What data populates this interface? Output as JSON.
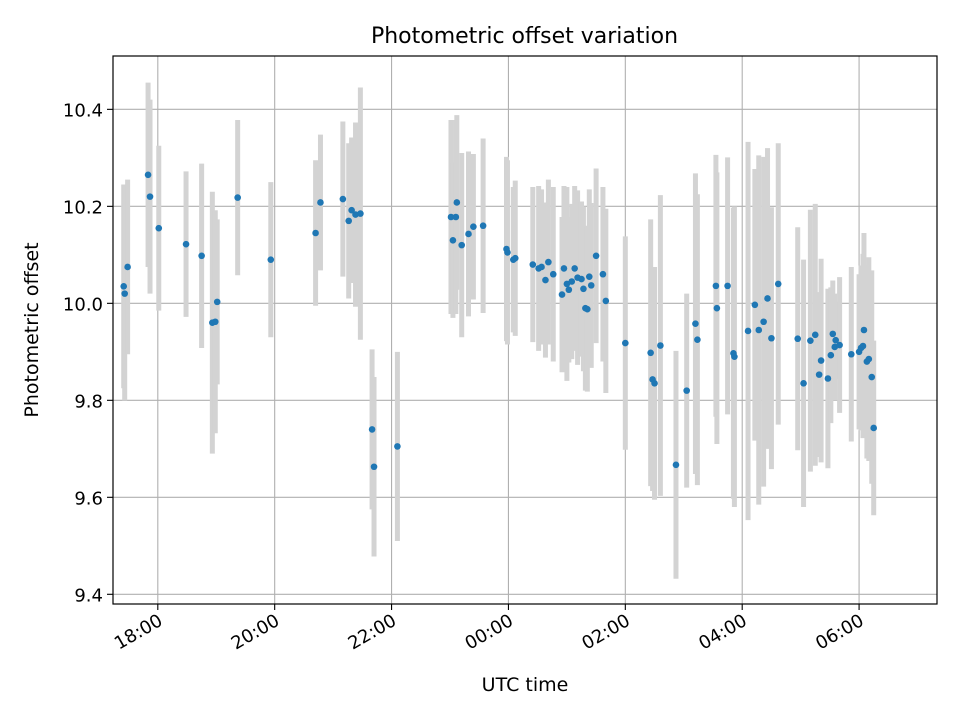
{
  "chart_data": {
    "type": "scatter",
    "title": "Photometric offset variation",
    "xlabel": "UTC time",
    "ylabel": "Photometric offset",
    "x_tick_labels": [
      "18:00",
      "20:00",
      "22:00",
      "00:00",
      "02:00",
      "04:00",
      "06:00"
    ],
    "y_ticks": [
      9.4,
      9.6,
      9.8,
      10.0,
      10.2,
      10.4
    ],
    "y_tick_labels": [
      "9.4",
      "9.6",
      "9.8",
      "10.0",
      "10.2",
      "10.4"
    ],
    "xlim": [
      "17:14",
      "07:20"
    ],
    "ylim": [
      9.38,
      10.51
    ],
    "grid": true,
    "error_bar_color": "#d3d3d3",
    "point_color": "#1f77b4",
    "points": [
      {
        "t": "17:25",
        "y": 10.035,
        "err": 0.21
      },
      {
        "t": "17:26",
        "y": 10.02,
        "err": 0.22
      },
      {
        "t": "17:29",
        "y": 10.075,
        "err": 0.18
      },
      {
        "t": "17:50",
        "y": 10.265,
        "err": 0.19
      },
      {
        "t": "17:52",
        "y": 10.22,
        "err": 0.2
      },
      {
        "t": "18:01",
        "y": 10.155,
        "err": 0.17
      },
      {
        "t": "18:29",
        "y": 10.122,
        "err": 0.15
      },
      {
        "t": "18:45",
        "y": 10.098,
        "err": 0.19
      },
      {
        "t": "18:56",
        "y": 9.96,
        "err": 0.27
      },
      {
        "t": "18:59",
        "y": 9.962,
        "err": 0.23
      },
      {
        "t": "19:01",
        "y": 10.003,
        "err": 0.17
      },
      {
        "t": "19:22",
        "y": 10.218,
        "err": 0.16
      },
      {
        "t": "19:56",
        "y": 10.09,
        "err": 0.16
      },
      {
        "t": "20:42",
        "y": 10.145,
        "err": 0.15
      },
      {
        "t": "20:47",
        "y": 10.208,
        "err": 0.14
      },
      {
        "t": "21:10",
        "y": 10.215,
        "err": 0.16
      },
      {
        "t": "21:16",
        "y": 10.17,
        "err": 0.16
      },
      {
        "t": "21:19",
        "y": 10.192,
        "err": 0.15
      },
      {
        "t": "21:23",
        "y": 10.183,
        "err": 0.19
      },
      {
        "t": "21:28",
        "y": 10.185,
        "err": 0.26
      },
      {
        "t": "21:40",
        "y": 9.74,
        "err": 0.165
      },
      {
        "t": "21:42",
        "y": 9.663,
        "err": 0.185
      },
      {
        "t": "22:06",
        "y": 9.705,
        "err": 0.195
      },
      {
        "t": "23:01",
        "y": 10.178,
        "err": 0.2
      },
      {
        "t": "23:03",
        "y": 10.13,
        "err": 0.16
      },
      {
        "t": "23:06",
        "y": 10.178,
        "err": 0.2
      },
      {
        "t": "23:07",
        "y": 10.208,
        "err": 0.18
      },
      {
        "t": "23:12",
        "y": 10.12,
        "err": 0.19
      },
      {
        "t": "23:19",
        "y": 10.143,
        "err": 0.17
      },
      {
        "t": "23:24",
        "y": 10.158,
        "err": 0.15
      },
      {
        "t": "23:34",
        "y": 10.16,
        "err": 0.18
      },
      {
        "t": "23:58",
        "y": 10.112,
        "err": 0.19
      },
      {
        "t": "23:59",
        "y": 10.105,
        "err": 0.19
      },
      {
        "t": "00:05",
        "y": 10.09,
        "err": 0.15
      },
      {
        "t": "00:07",
        "y": 10.093,
        "err": 0.16
      },
      {
        "t": "00:25",
        "y": 10.08,
        "err": 0.16
      },
      {
        "t": "00:31",
        "y": 10.072,
        "err": 0.17
      },
      {
        "t": "00:34",
        "y": 10.075,
        "err": 0.16
      },
      {
        "t": "00:38",
        "y": 10.048,
        "err": 0.16
      },
      {
        "t": "00:41",
        "y": 10.085,
        "err": 0.17
      },
      {
        "t": "00:46",
        "y": 10.06,
        "err": 0.18
      },
      {
        "t": "00:55",
        "y": 10.018,
        "err": 0.16
      },
      {
        "t": "00:57",
        "y": 10.072,
        "err": 0.17
      },
      {
        "t": "01:00",
        "y": 10.04,
        "err": 0.2
      },
      {
        "t": "01:02",
        "y": 10.028,
        "err": 0.15
      },
      {
        "t": "01:05",
        "y": 10.045,
        "err": 0.16
      },
      {
        "t": "01:08",
        "y": 10.072,
        "err": 0.17
      },
      {
        "t": "01:11",
        "y": 10.053,
        "err": 0.18
      },
      {
        "t": "01:15",
        "y": 10.05,
        "err": 0.16
      },
      {
        "t": "01:17",
        "y": 10.03,
        "err": 0.17
      },
      {
        "t": "01:19",
        "y": 9.99,
        "err": 0.17
      },
      {
        "t": "01:21",
        "y": 9.988,
        "err": 0.17
      },
      {
        "t": "01:23",
        "y": 10.055,
        "err": 0.18
      },
      {
        "t": "01:25",
        "y": 10.037,
        "err": 0.17
      },
      {
        "t": "01:30",
        "y": 10.098,
        "err": 0.18
      },
      {
        "t": "01:37",
        "y": 10.06,
        "err": 0.18
      },
      {
        "t": "01:40",
        "y": 10.005,
        "err": 0.19
      },
      {
        "t": "02:00",
        "y": 9.918,
        "err": 0.22
      },
      {
        "t": "02:26",
        "y": 9.898,
        "err": 0.275
      },
      {
        "t": "02:28",
        "y": 9.843,
        "err": 0.23
      },
      {
        "t": "02:30",
        "y": 9.835,
        "err": 0.24
      },
      {
        "t": "02:36",
        "y": 9.913,
        "err": 0.31
      },
      {
        "t": "02:52",
        "y": 9.667,
        "err": 0.235
      },
      {
        "t": "03:03",
        "y": 9.82,
        "err": 0.2
      },
      {
        "t": "03:12",
        "y": 9.958,
        "err": 0.31
      },
      {
        "t": "03:14",
        "y": 9.925,
        "err": 0.3
      },
      {
        "t": "03:33",
        "y": 10.036,
        "err": 0.27
      },
      {
        "t": "03:34",
        "y": 9.99,
        "err": 0.28
      },
      {
        "t": "03:45",
        "y": 10.036,
        "err": 0.265
      },
      {
        "t": "03:51",
        "y": 9.897,
        "err": 0.3
      },
      {
        "t": "03:52",
        "y": 9.89,
        "err": 0.31
      },
      {
        "t": "04:06",
        "y": 9.943,
        "err": 0.39
      },
      {
        "t": "04:13",
        "y": 9.997,
        "err": 0.28
      },
      {
        "t": "04:17",
        "y": 9.945,
        "err": 0.36
      },
      {
        "t": "04:22",
        "y": 9.962,
        "err": 0.34
      },
      {
        "t": "04:26",
        "y": 10.01,
        "err": 0.31
      },
      {
        "t": "04:30",
        "y": 9.928,
        "err": 0.27
      },
      {
        "t": "04:37",
        "y": 10.04,
        "err": 0.29
      },
      {
        "t": "04:57",
        "y": 9.927,
        "err": 0.23
      },
      {
        "t": "05:03",
        "y": 9.835,
        "err": 0.255
      },
      {
        "t": "05:10",
        "y": 9.923,
        "err": 0.27
      },
      {
        "t": "05:15",
        "y": 9.935,
        "err": 0.27
      },
      {
        "t": "05:19",
        "y": 9.853,
        "err": 0.17
      },
      {
        "t": "05:21",
        "y": 9.882,
        "err": 0.21
      },
      {
        "t": "05:28",
        "y": 9.845,
        "err": 0.185
      },
      {
        "t": "05:31",
        "y": 9.893,
        "err": 0.14
      },
      {
        "t": "05:33",
        "y": 9.937,
        "err": 0.11
      },
      {
        "t": "05:35",
        "y": 9.91,
        "err": 0.11
      },
      {
        "t": "05:36",
        "y": 9.924,
        "err": 0.08
      },
      {
        "t": "05:40",
        "y": 9.914,
        "err": 0.14
      },
      {
        "t": "05:52",
        "y": 9.895,
        "err": 0.18
      },
      {
        "t": "06:00",
        "y": 9.9,
        "err": 0.16
      },
      {
        "t": "06:02",
        "y": 9.908,
        "err": 0.17
      },
      {
        "t": "06:04",
        "y": 9.912,
        "err": 0.19
      },
      {
        "t": "06:05",
        "y": 9.945,
        "err": 0.2
      },
      {
        "t": "06:08",
        "y": 9.88,
        "err": 0.2
      },
      {
        "t": "06:10",
        "y": 9.885,
        "err": 0.21
      },
      {
        "t": "06:13",
        "y": 9.848,
        "err": 0.22
      },
      {
        "t": "06:15",
        "y": 9.743,
        "err": 0.18
      }
    ]
  }
}
